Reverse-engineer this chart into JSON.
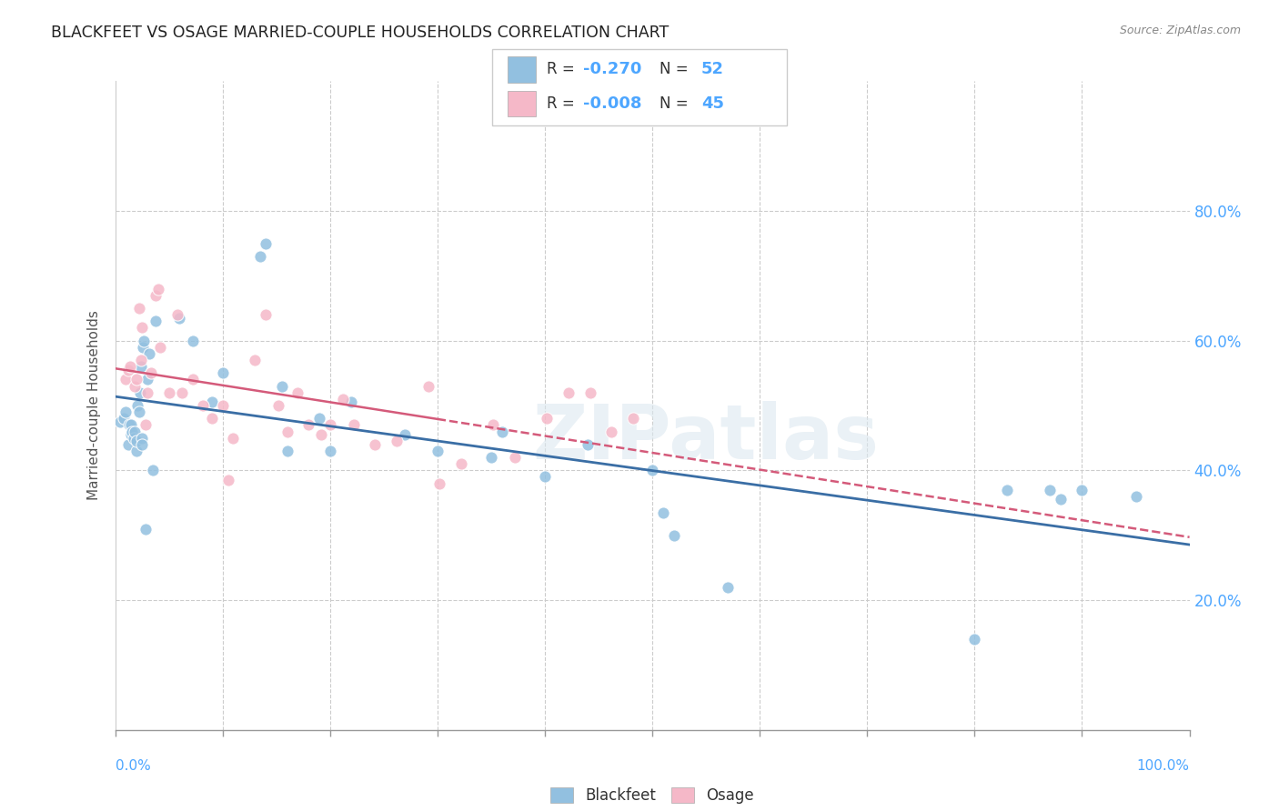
{
  "title": "BLACKFEET VS OSAGE MARRIED-COUPLE HOUSEHOLDS CORRELATION CHART",
  "source": "Source: ZipAtlas.com",
  "ylabel": "Married-couple Households",
  "watermark": "ZIPatlas",
  "blue_color": "#92c0e0",
  "pink_color": "#f5b8c8",
  "blue_line_color": "#3a6ea5",
  "pink_line_color": "#d45a7a",
  "background_color": "#ffffff",
  "grid_color": "#cccccc",
  "right_axis_color": "#4da6ff",
  "blackfeet_x": [
    0.005,
    0.008,
    0.01,
    0.012,
    0.013,
    0.015,
    0.015,
    0.016,
    0.017,
    0.018,
    0.02,
    0.02,
    0.021,
    0.022,
    0.023,
    0.024,
    0.025,
    0.025,
    0.026,
    0.027,
    0.028,
    0.03,
    0.032,
    0.035,
    0.038,
    0.06,
    0.072,
    0.09,
    0.1,
    0.135,
    0.14,
    0.155,
    0.16,
    0.19,
    0.2,
    0.22,
    0.27,
    0.3,
    0.35,
    0.36,
    0.4,
    0.44,
    0.5,
    0.51,
    0.52,
    0.57,
    0.8,
    0.83,
    0.87,
    0.88,
    0.9,
    0.95
  ],
  "blackfeet_y": [
    0.475,
    0.48,
    0.49,
    0.44,
    0.47,
    0.47,
    0.455,
    0.46,
    0.45,
    0.46,
    0.43,
    0.445,
    0.5,
    0.49,
    0.52,
    0.56,
    0.45,
    0.44,
    0.59,
    0.6,
    0.31,
    0.54,
    0.58,
    0.4,
    0.63,
    0.635,
    0.6,
    0.505,
    0.55,
    0.73,
    0.75,
    0.53,
    0.43,
    0.48,
    0.43,
    0.505,
    0.455,
    0.43,
    0.42,
    0.46,
    0.39,
    0.44,
    0.4,
    0.335,
    0.3,
    0.22,
    0.14,
    0.37,
    0.37,
    0.355,
    0.37,
    0.36
  ],
  "osage_x": [
    0.01,
    0.012,
    0.014,
    0.018,
    0.02,
    0.022,
    0.024,
    0.025,
    0.028,
    0.03,
    0.033,
    0.038,
    0.04,
    0.042,
    0.05,
    0.058,
    0.062,
    0.072,
    0.082,
    0.09,
    0.1,
    0.105,
    0.11,
    0.13,
    0.14,
    0.152,
    0.16,
    0.17,
    0.18,
    0.192,
    0.2,
    0.212,
    0.222,
    0.242,
    0.262,
    0.292,
    0.302,
    0.322,
    0.352,
    0.372,
    0.402,
    0.422,
    0.442,
    0.462,
    0.482
  ],
  "osage_y": [
    0.54,
    0.555,
    0.56,
    0.53,
    0.54,
    0.65,
    0.57,
    0.62,
    0.47,
    0.52,
    0.55,
    0.67,
    0.68,
    0.59,
    0.52,
    0.64,
    0.52,
    0.54,
    0.5,
    0.48,
    0.5,
    0.385,
    0.45,
    0.57,
    0.64,
    0.5,
    0.46,
    0.52,
    0.47,
    0.455,
    0.47,
    0.51,
    0.47,
    0.44,
    0.445,
    0.53,
    0.38,
    0.41,
    0.47,
    0.42,
    0.48,
    0.52,
    0.52,
    0.46,
    0.48
  ],
  "ylim_min": 0.0,
  "ylim_max": 1.0,
  "xlim_min": 0.0,
  "xlim_max": 1.0,
  "ytick_positions": [
    0.2,
    0.4,
    0.6,
    0.8
  ],
  "ytick_labels": [
    "20.0%",
    "40.0%",
    "60.0%",
    "80.0%"
  ],
  "xtick_positions": [
    0.0,
    0.1,
    0.2,
    0.3,
    0.4,
    0.5,
    0.6,
    0.7,
    0.8,
    0.9,
    1.0
  ],
  "legend_blue_r": "-0.270",
  "legend_blue_n": "52",
  "legend_pink_r": "-0.008",
  "legend_pink_n": "45"
}
